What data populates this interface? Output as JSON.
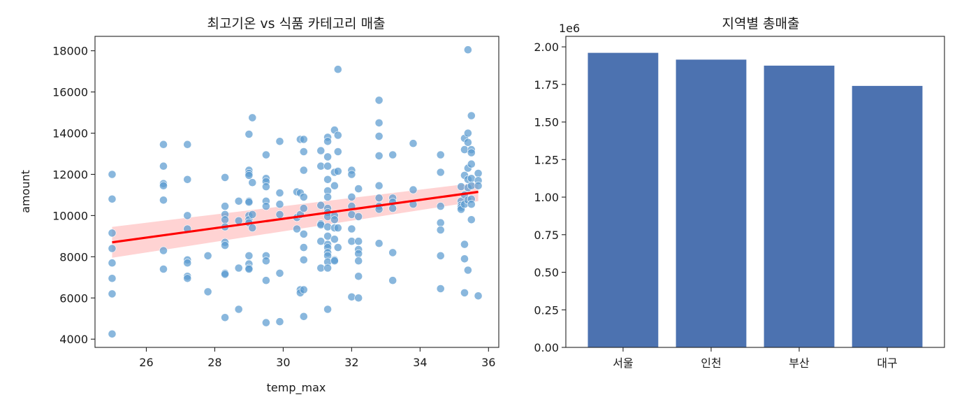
{
  "colors": {
    "scatter": "#5b9bd0",
    "regression_line": "#ff0000",
    "confidence_band": "#ffc8c8",
    "bar": "#4c72b0"
  },
  "chart_data": [
    {
      "type": "scatter",
      "title": "최고기온 vs 식품 카테고리 매출",
      "xlabel": "temp_max",
      "ylabel": "amount",
      "xlim": [
        24.5,
        36.3
      ],
      "ylim": [
        3600,
        18700
      ],
      "xticks": [
        26,
        28,
        30,
        32,
        34,
        36
      ],
      "yticks": [
        4000,
        6000,
        8000,
        10000,
        12000,
        14000,
        16000,
        18000
      ],
      "points": [
        [
          25.0,
          12000
        ],
        [
          25.0,
          10800
        ],
        [
          25.0,
          9150
        ],
        [
          25.0,
          8400
        ],
        [
          25.0,
          7700
        ],
        [
          25.0,
          6950
        ],
        [
          25.0,
          6200
        ],
        [
          25.0,
          4250
        ],
        [
          26.5,
          13450
        ],
        [
          26.5,
          12400
        ],
        [
          26.5,
          11550
        ],
        [
          26.5,
          11450
        ],
        [
          26.5,
          10750
        ],
        [
          26.5,
          8300
        ],
        [
          26.5,
          7400
        ],
        [
          27.2,
          13450
        ],
        [
          27.2,
          11750
        ],
        [
          27.2,
          10000
        ],
        [
          27.2,
          9350
        ],
        [
          27.2,
          7850
        ],
        [
          27.2,
          7700
        ],
        [
          27.2,
          7050
        ],
        [
          27.2,
          6950
        ],
        [
          27.8,
          8050
        ],
        [
          27.8,
          6300
        ],
        [
          28.3,
          11850
        ],
        [
          28.3,
          10450
        ],
        [
          28.3,
          10050
        ],
        [
          28.3,
          9800
        ],
        [
          28.3,
          9450
        ],
        [
          28.3,
          8700
        ],
        [
          28.3,
          8550
        ],
        [
          28.3,
          7200
        ],
        [
          28.3,
          7150
        ],
        [
          28.3,
          5050
        ],
        [
          28.7,
          10700
        ],
        [
          28.7,
          9750
        ],
        [
          28.7,
          7450
        ],
        [
          28.7,
          5450
        ],
        [
          29.0,
          13950
        ],
        [
          29.0,
          12200
        ],
        [
          29.0,
          12050
        ],
        [
          29.0,
          11950
        ],
        [
          29.0,
          10700
        ],
        [
          29.0,
          10650
        ],
        [
          29.0,
          10000
        ],
        [
          29.0,
          9800
        ],
        [
          29.0,
          9650
        ],
        [
          29.0,
          8050
        ],
        [
          29.0,
          7650
        ],
        [
          29.0,
          7450
        ],
        [
          29.0,
          7400
        ],
        [
          29.1,
          14750
        ],
        [
          29.1,
          11600
        ],
        [
          29.1,
          10050
        ],
        [
          29.1,
          9400
        ],
        [
          29.5,
          12950
        ],
        [
          29.5,
          11800
        ],
        [
          29.5,
          11650
        ],
        [
          29.5,
          11400
        ],
        [
          29.5,
          10700
        ],
        [
          29.5,
          10450
        ],
        [
          29.5,
          8050
        ],
        [
          29.5,
          7800
        ],
        [
          29.5,
          6850
        ],
        [
          29.5,
          4800
        ],
        [
          29.9,
          13600
        ],
        [
          29.9,
          11100
        ],
        [
          29.9,
          10550
        ],
        [
          29.9,
          10050
        ],
        [
          29.9,
          7200
        ],
        [
          29.9,
          4850
        ],
        [
          30.4,
          11150
        ],
        [
          30.4,
          9900
        ],
        [
          30.4,
          9350
        ],
        [
          30.5,
          13700
        ],
        [
          30.5,
          11100
        ],
        [
          30.5,
          10050
        ],
        [
          30.5,
          6400
        ],
        [
          30.5,
          6250
        ],
        [
          30.6,
          13700
        ],
        [
          30.6,
          13100
        ],
        [
          30.6,
          12200
        ],
        [
          30.6,
          10900
        ],
        [
          30.6,
          10350
        ],
        [
          30.6,
          9100
        ],
        [
          30.6,
          8450
        ],
        [
          30.6,
          7850
        ],
        [
          30.6,
          6400
        ],
        [
          30.6,
          5100
        ],
        [
          31.1,
          13150
        ],
        [
          31.1,
          12400
        ],
        [
          31.1,
          10500
        ],
        [
          31.1,
          9600
        ],
        [
          31.1,
          9550
        ],
        [
          31.1,
          8750
        ],
        [
          31.1,
          7450
        ],
        [
          31.3,
          13800
        ],
        [
          31.3,
          13600
        ],
        [
          31.3,
          12850
        ],
        [
          31.3,
          12400
        ],
        [
          31.3,
          11750
        ],
        [
          31.3,
          11200
        ],
        [
          31.3,
          10900
        ],
        [
          31.3,
          10350
        ],
        [
          31.3,
          10150
        ],
        [
          31.3,
          9950
        ],
        [
          31.3,
          9450
        ],
        [
          31.3,
          9000
        ],
        [
          31.3,
          8600
        ],
        [
          31.3,
          8450
        ],
        [
          31.3,
          8200
        ],
        [
          31.3,
          8050
        ],
        [
          31.3,
          7750
        ],
        [
          31.3,
          7450
        ],
        [
          31.3,
          5450
        ],
        [
          31.5,
          14150
        ],
        [
          31.5,
          12100
        ],
        [
          31.5,
          11450
        ],
        [
          31.5,
          10000
        ],
        [
          31.5,
          9800
        ],
        [
          31.5,
          9400
        ],
        [
          31.5,
          8850
        ],
        [
          31.5,
          7850
        ],
        [
          31.5,
          7800
        ],
        [
          31.6,
          17100
        ],
        [
          31.6,
          13900
        ],
        [
          31.6,
          13100
        ],
        [
          31.6,
          12150
        ],
        [
          31.6,
          9400
        ],
        [
          31.6,
          8450
        ],
        [
          32.0,
          12200
        ],
        [
          32.0,
          12000
        ],
        [
          32.0,
          10900
        ],
        [
          32.0,
          10450
        ],
        [
          32.0,
          10050
        ],
        [
          32.0,
          9350
        ],
        [
          32.0,
          8750
        ],
        [
          32.0,
          6050
        ],
        [
          32.2,
          11300
        ],
        [
          32.2,
          9950
        ],
        [
          32.2,
          8750
        ],
        [
          32.2,
          8350
        ],
        [
          32.2,
          8150
        ],
        [
          32.2,
          7800
        ],
        [
          32.2,
          7050
        ],
        [
          32.2,
          6000
        ],
        [
          32.8,
          15600
        ],
        [
          32.8,
          14500
        ],
        [
          32.8,
          13850
        ],
        [
          32.8,
          12900
        ],
        [
          32.8,
          11450
        ],
        [
          32.8,
          10850
        ],
        [
          32.8,
          10450
        ],
        [
          32.8,
          10300
        ],
        [
          32.8,
          8650
        ],
        [
          33.2,
          12950
        ],
        [
          33.2,
          10850
        ],
        [
          33.2,
          10650
        ],
        [
          33.2,
          10350
        ],
        [
          33.2,
          8200
        ],
        [
          33.2,
          6850
        ],
        [
          33.8,
          13500
        ],
        [
          33.8,
          11250
        ],
        [
          33.8,
          10550
        ],
        [
          34.6,
          12950
        ],
        [
          34.6,
          12100
        ],
        [
          34.6,
          10450
        ],
        [
          34.6,
          9650
        ],
        [
          34.6,
          9300
        ],
        [
          34.6,
          8050
        ],
        [
          34.6,
          6450
        ],
        [
          35.2,
          11400
        ],
        [
          35.2,
          10700
        ],
        [
          35.2,
          10500
        ],
        [
          35.2,
          10400
        ],
        [
          35.2,
          10300
        ],
        [
          35.3,
          13750
        ],
        [
          35.3,
          13200
        ],
        [
          35.3,
          11950
        ],
        [
          35.3,
          11000
        ],
        [
          35.3,
          10550
        ],
        [
          35.3,
          8600
        ],
        [
          35.3,
          7900
        ],
        [
          35.3,
          6250
        ],
        [
          35.4,
          18050
        ],
        [
          35.4,
          14000
        ],
        [
          35.4,
          13550
        ],
        [
          35.4,
          12300
        ],
        [
          35.4,
          11750
        ],
        [
          35.4,
          11350
        ],
        [
          35.4,
          10750
        ],
        [
          35.4,
          7350
        ],
        [
          35.5,
          14850
        ],
        [
          35.5,
          13200
        ],
        [
          35.5,
          13050
        ],
        [
          35.5,
          12500
        ],
        [
          35.5,
          11800
        ],
        [
          35.5,
          11450
        ],
        [
          35.5,
          10800
        ],
        [
          35.5,
          10550
        ],
        [
          35.5,
          9800
        ],
        [
          35.7,
          12050
        ],
        [
          35.7,
          11700
        ],
        [
          35.7,
          11450
        ],
        [
          35.7,
          6100
        ]
      ],
      "regression": {
        "x": [
          25.0,
          35.7
        ],
        "y": [
          8700,
          11150
        ],
        "band_upper": [
          9450,
          11600
        ],
        "band_lower": [
          7950,
          10700
        ]
      }
    },
    {
      "type": "bar",
      "title": "지역별 총매출",
      "axis_multiplier": "1e6",
      "categories": [
        "서울",
        "인천",
        "부산",
        "대구"
      ],
      "values": [
        1.96,
        1.915,
        1.875,
        1.74
      ],
      "ylim": [
        0,
        2.07
      ],
      "yticks": [
        "0.00",
        "0.25",
        "0.50",
        "0.75",
        "1.00",
        "1.25",
        "1.50",
        "1.75",
        "2.00"
      ]
    }
  ]
}
